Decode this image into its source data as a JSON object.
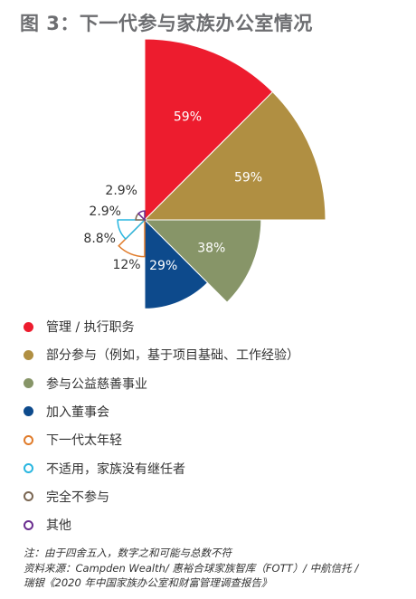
{
  "title": "图 3：下一代参与家族办公室情况",
  "chart_data": {
    "type": "pie",
    "subtype": "polar-area",
    "categories": [
      "管理 / 执行职务",
      "部分参与（例如，基于项目基础、工作经验）",
      "参与公益慈善事业",
      "加入董事会",
      "下一代太年轻",
      "不适用，家族没有继任者",
      "完全不参与",
      "其他"
    ],
    "values": [
      59,
      59,
      38,
      29,
      12,
      8.8,
      2.9,
      2.9
    ],
    "value_labels": [
      "59%",
      "59%",
      "38%",
      "29%",
      "12%",
      "8.8%",
      "2.9%",
      "2.9%"
    ],
    "colors": [
      "#ed1c2e",
      "#b08f42",
      "#879568",
      "#0d4a8c",
      "#e07b2a",
      "#29b6e0",
      "#7a6652",
      "#6a2d8f"
    ],
    "filled": [
      true,
      true,
      true,
      true,
      false,
      false,
      false,
      false
    ],
    "legend_position": "bottom"
  },
  "notes": [
    "注：由于四舍五入，数字之和可能与总数不符",
    "资料来源：Campden Wealth/ 惠裕合球家族智库（FOTT）/ 中航信托 /",
    "瑞银《2020 年中国家族办公室和财富管理调查报告》"
  ]
}
